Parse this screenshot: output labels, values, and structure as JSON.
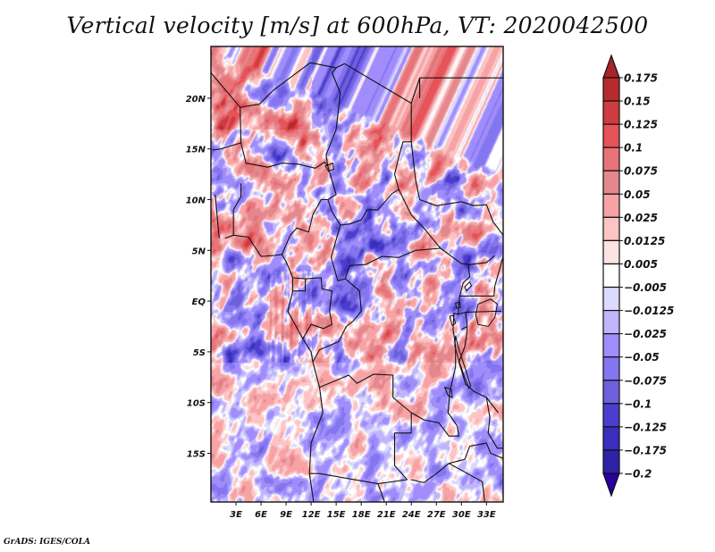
{
  "title": "Vertical velocity [m/s] at 600hPa, VT: 2020042500",
  "footer": "GrADS: IGES/COLA",
  "chart_data": {
    "type": "heatmap",
    "title": "Vertical velocity [m/s] at 600hPa, VT: 2020042500",
    "variable": "Vertical velocity",
    "units": "m/s",
    "level": "600hPa",
    "valid_time": "2020042500",
    "xlabel": "",
    "ylabel": "",
    "lon_range": [
      0,
      35
    ],
    "lat_range": [
      -19.8,
      25.1
    ],
    "x_ticks": [
      {
        "value": 3,
        "label": "3E"
      },
      {
        "value": 6,
        "label": "6E"
      },
      {
        "value": 9,
        "label": "9E"
      },
      {
        "value": 12,
        "label": "12E"
      },
      {
        "value": 15,
        "label": "15E"
      },
      {
        "value": 18,
        "label": "18E"
      },
      {
        "value": 21,
        "label": "21E"
      },
      {
        "value": 24,
        "label": "24E"
      },
      {
        "value": 27,
        "label": "27E"
      },
      {
        "value": 30,
        "label": "30E"
      },
      {
        "value": 33,
        "label": "33E"
      }
    ],
    "y_ticks": [
      {
        "value": 20,
        "label": "20N"
      },
      {
        "value": 15,
        "label": "15N"
      },
      {
        "value": 10,
        "label": "10N"
      },
      {
        "value": 5,
        "label": "5N"
      },
      {
        "value": 0,
        "label": "EQ"
      },
      {
        "value": -5,
        "label": "5S"
      },
      {
        "value": -10,
        "label": "10S"
      },
      {
        "value": -15,
        "label": "15S"
      }
    ],
    "grid": false,
    "legend": "right",
    "colorbar": {
      "levels": [
        0.175,
        0.15,
        0.125,
        0.1,
        0.075,
        0.05,
        0.025,
        0.0125,
        0.005,
        -0.005,
        -0.0125,
        -0.025,
        -0.05,
        -0.075,
        -0.1,
        -0.125,
        -0.175,
        -0.2
      ],
      "labels": [
        "0.175",
        "0.15",
        "0.125",
        "0.1",
        "0.075",
        "0.05",
        "0.025",
        "0.0125",
        "0.005",
        "−0.005",
        "−0.0125",
        "−0.025",
        "−0.05",
        "−0.075",
        "−0.1",
        "−0.125",
        "−0.175",
        "−0.2"
      ],
      "colors_top_to_bottom": [
        "#a82428",
        "#b72b2f",
        "#cc3c40",
        "#e65358",
        "#e87378",
        "#e3898e",
        "#f7a3a6",
        "#fcc4c4",
        "#fee3e3",
        "#ffffff",
        "#dbdbfd",
        "#c0b5fd",
        "#a08cfb",
        "#8376ee",
        "#6e5fdc",
        "#4b3ecf",
        "#3a2ebf",
        "#2d22a8",
        "#2800a0"
      ]
    },
    "borders": [
      [
        [
          0,
          22.5
        ],
        [
          3.5,
          19.1
        ],
        [
          4.2,
          19.2
        ],
        [
          5.8,
          19.4
        ],
        [
          7.5,
          20.8
        ],
        [
          11.9,
          23.5
        ]
      ],
      [
        [
          3.5,
          19.1
        ],
        [
          3.6,
          15.6
        ],
        [
          1.2,
          15.0
        ],
        [
          0.2,
          14.9
        ]
      ],
      [
        [
          3.6,
          15.6
        ],
        [
          4.2,
          13.6
        ],
        [
          6.8,
          13.2
        ],
        [
          8.5,
          13.6
        ],
        [
          10.5,
          13.5
        ],
        [
          12.5,
          13.1
        ],
        [
          13.6,
          13.7
        ],
        [
          14.0,
          13.3
        ]
      ],
      [
        [
          11.9,
          23.5
        ],
        [
          15.0,
          23.0
        ],
        [
          16.0,
          23.4
        ],
        [
          24.0,
          19.5
        ],
        [
          24.0,
          15.7
        ],
        [
          23.0,
          15.7
        ],
        [
          22.5,
          14.2
        ],
        [
          22.0,
          12.5
        ],
        [
          22.5,
          11.0
        ],
        [
          21.7,
          10.6
        ],
        [
          20.0,
          9.0
        ],
        [
          18.7,
          9.0
        ],
        [
          18.0,
          8.0
        ],
        [
          16.6,
          7.6
        ],
        [
          15.5,
          7.5
        ],
        [
          14.5,
          8.8
        ],
        [
          14.0,
          10.0
        ],
        [
          15.0,
          10.5
        ],
        [
          14.0,
          13.3
        ],
        [
          13.8,
          14.4
        ],
        [
          15.0,
          16.9
        ],
        [
          15.5,
          20.5
        ],
        [
          14.5,
          22.5
        ],
        [
          15.0,
          23.0
        ]
      ],
      [
        [
          24.0,
          19.5
        ],
        [
          25.0,
          22.0
        ],
        [
          25.0,
          20.0
        ]
      ],
      [
        [
          25.0,
          22.0
        ],
        [
          35,
          22.0
        ]
      ],
      [
        [
          24.0,
          15.7
        ],
        [
          24.5,
          12.0
        ],
        [
          25.0,
          10.0
        ],
        [
          27.0,
          9.4
        ],
        [
          30.0,
          9.8
        ],
        [
          31.5,
          9.4
        ],
        [
          33.0,
          9.5
        ],
        [
          33.8,
          7.8
        ],
        [
          35,
          6.5
        ]
      ],
      [
        [
          22.5,
          11.0
        ],
        [
          24.0,
          8.5
        ],
        [
          25.5,
          7.2
        ],
        [
          27.5,
          5.2
        ],
        [
          30.0,
          3.7
        ],
        [
          31.0,
          3.6
        ],
        [
          33.0,
          3.8
        ],
        [
          34.0,
          4.5
        ]
      ],
      [
        [
          15.5,
          7.5
        ],
        [
          14.4,
          4.3
        ],
        [
          15.2,
          2.0
        ],
        [
          16.1,
          2.2
        ],
        [
          16.6,
          3.5
        ],
        [
          18.5,
          3.6
        ],
        [
          20.5,
          4.4
        ],
        [
          22.5,
          4.3
        ],
        [
          24.5,
          5.0
        ],
        [
          27.5,
          5.2
        ]
      ],
      [
        [
          0.5,
          10.5
        ],
        [
          1.0,
          6.2
        ]
      ],
      [
        [
          1.7,
          6.2
        ],
        [
          2.7,
          6.5
        ],
        [
          2.7,
          9.0
        ],
        [
          3.6,
          10.3
        ],
        [
          3.6,
          11.6
        ]
      ],
      [
        [
          2.7,
          6.5
        ],
        [
          4.5,
          6.3
        ],
        [
          6.0,
          4.4
        ],
        [
          7.6,
          4.5
        ],
        [
          8.5,
          4.6
        ],
        [
          9.0,
          3.9
        ],
        [
          9.8,
          2.3
        ],
        [
          9.8,
          1.0
        ],
        [
          9.2,
          -1.0
        ],
        [
          11.0,
          -3.7
        ],
        [
          12.0,
          -5.0
        ],
        [
          12.2,
          -6.0
        ],
        [
          13.0,
          -8.5
        ],
        [
          13.4,
          -11.0
        ],
        [
          12.0,
          -14.0
        ],
        [
          11.8,
          -17.0
        ],
        [
          12.3,
          -19.8
        ]
      ],
      [
        [
          8.5,
          4.6
        ],
        [
          9.5,
          6.5
        ],
        [
          10.3,
          7.2
        ],
        [
          11.7,
          6.8
        ],
        [
          12.2,
          8.5
        ],
        [
          13.2,
          10.0
        ],
        [
          14.0,
          10.0
        ]
      ],
      [
        [
          9.8,
          2.3
        ],
        [
          11.3,
          2.2
        ],
        [
          13.2,
          2.3
        ],
        [
          13.3,
          1.2
        ],
        [
          14.5,
          1.0
        ],
        [
          14.2,
          -1.0
        ],
        [
          14.5,
          -2.3
        ],
        [
          13.5,
          -2.7
        ],
        [
          12.0,
          -2.3
        ],
        [
          11.5,
          -3.0
        ],
        [
          11.0,
          -3.7
        ]
      ],
      [
        [
          11.3,
          2.2
        ],
        [
          11.3,
          1.0
        ],
        [
          9.8,
          1.0
        ]
      ],
      [
        [
          16.1,
          2.2
        ],
        [
          17.8,
          1.0
        ],
        [
          18.0,
          -1.0
        ],
        [
          17.0,
          -2.0
        ],
        [
          16.2,
          -2.5
        ],
        [
          15.3,
          -4.0
        ],
        [
          13.0,
          -4.8
        ],
        [
          12.2,
          -6.0
        ]
      ],
      [
        [
          13.0,
          -8.5
        ],
        [
          16.5,
          -7.3
        ],
        [
          17.5,
          -8.1
        ],
        [
          19.5,
          -7.2
        ],
        [
          21.8,
          -7.3
        ],
        [
          21.8,
          -9.5
        ],
        [
          24.0,
          -11.0
        ],
        [
          24.0,
          -13.0
        ],
        [
          22.0,
          -13.0
        ],
        [
          22.0,
          -16.2
        ],
        [
          23.5,
          -17.6
        ],
        [
          20.0,
          -18.0
        ],
        [
          13.0,
          -17.0
        ],
        [
          11.8,
          -17.0
        ]
      ],
      [
        [
          24.0,
          -11.0
        ],
        [
          25.5,
          -11.7
        ],
        [
          27.3,
          -12.0
        ],
        [
          28.5,
          -13.3
        ],
        [
          29.7,
          -13.3
        ],
        [
          29.5,
          -12.3
        ],
        [
          28.4,
          -11.0
        ],
        [
          28.6,
          -9.0
        ],
        [
          29.3,
          -6.5
        ],
        [
          29.3,
          -4.4
        ],
        [
          29.0,
          -2.8
        ],
        [
          29.1,
          -1.2
        ],
        [
          29.6,
          -1.3
        ],
        [
          29.8,
          0.5
        ],
        [
          30.2,
          1.8
        ],
        [
          31.0,
          2.4
        ],
        [
          30.8,
          3.6
        ]
      ],
      [
        [
          29.6,
          -1.3
        ],
        [
          30.5,
          -1.1
        ],
        [
          30.7,
          -2.5
        ],
        [
          30.0,
          -2.8
        ]
      ],
      [
        [
          30.5,
          -1.1
        ],
        [
          33.9,
          -1.0
        ],
        [
          34.8,
          -1.0
        ]
      ],
      [
        [
          29.8,
          0.5
        ],
        [
          33.9,
          0.5
        ],
        [
          34.0,
          1.5
        ],
        [
          35,
          4.4
        ]
      ],
      [
        [
          30.7,
          -2.5
        ],
        [
          30.6,
          -3.5
        ],
        [
          30.4,
          -4.5
        ],
        [
          29.7,
          -6.0
        ],
        [
          30.5,
          -8.2
        ],
        [
          31.5,
          -8.9
        ],
        [
          33.0,
          -9.5
        ],
        [
          34.4,
          -11.0
        ]
      ],
      [
        [
          24.0,
          -17.6
        ],
        [
          25.5,
          -17.9
        ],
        [
          27.0,
          -17.0
        ],
        [
          28.5,
          -16.0
        ],
        [
          30.4,
          -15.6
        ],
        [
          31.0,
          -14.3
        ],
        [
          33.0,
          -14.0
        ],
        [
          33.5,
          -15.0
        ],
        [
          35,
          -15.5
        ]
      ],
      [
        [
          33.0,
          -9.5
        ],
        [
          33.4,
          -11.5
        ],
        [
          33.2,
          -13.0
        ],
        [
          34.3,
          -14.5
        ],
        [
          35,
          -14.5
        ]
      ],
      [
        [
          20.0,
          -18.0
        ],
        [
          20.8,
          -19.8
        ]
      ],
      [
        [
          28.5,
          -16.0
        ],
        [
          32.5,
          -17.8
        ],
        [
          32.8,
          -19.8
        ]
      ]
    ],
    "lakes": [
      [
        [
          29.3,
          -3.4
        ],
        [
          29.6,
          -4.5
        ],
        [
          30.0,
          -5.5
        ],
        [
          30.6,
          -7.0
        ],
        [
          31.1,
          -8.4
        ],
        [
          30.9,
          -8.6
        ],
        [
          30.3,
          -7.3
        ],
        [
          29.7,
          -5.9
        ],
        [
          29.2,
          -4.4
        ]
      ],
      [
        [
          32.0,
          -0.3
        ],
        [
          33.5,
          0.2
        ],
        [
          34.3,
          -0.3
        ],
        [
          34.0,
          -1.6
        ],
        [
          33.2,
          -2.5
        ],
        [
          32.0,
          -2.3
        ],
        [
          31.7,
          -1.3
        ]
      ],
      [
        [
          28.6,
          -1.5
        ],
        [
          29.0,
          -1.4
        ],
        [
          29.3,
          -2.2
        ],
        [
          28.9,
          -2.4
        ]
      ],
      [
        [
          30.4,
          1.4
        ],
        [
          31.0,
          1.9
        ],
        [
          31.2,
          1.5
        ],
        [
          30.6,
          1.0
        ]
      ],
      [
        [
          13.7,
          13.3
        ],
        [
          14.6,
          13.6
        ],
        [
          14.7,
          13.0
        ],
        [
          14.1,
          12.8
        ]
      ],
      [
        [
          28.0,
          -8.5
        ],
        [
          28.8,
          -8.7
        ],
        [
          28.9,
          -9.5
        ],
        [
          28.4,
          -9.3
        ]
      ],
      [
        [
          29.3,
          -0.2
        ],
        [
          29.8,
          -0.1
        ],
        [
          29.9,
          -0.6
        ],
        [
          29.4,
          -0.7
        ]
      ]
    ]
  }
}
